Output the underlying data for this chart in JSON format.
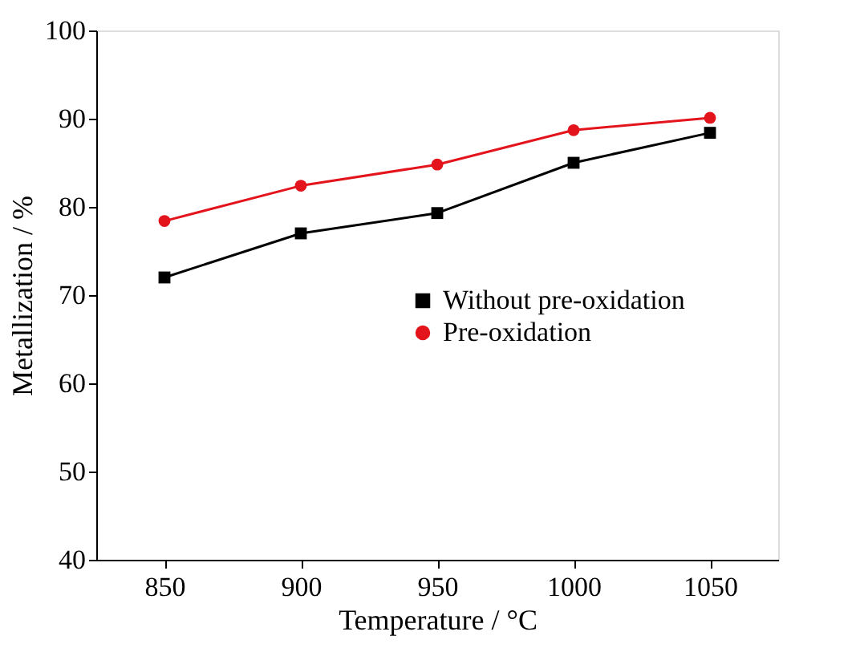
{
  "chart_data": {
    "type": "line",
    "xlabel": "Temperature / °C",
    "ylabel": "Metallization / %",
    "x": [
      850,
      900,
      950,
      1000,
      1050
    ],
    "series": [
      {
        "name": "Without pre-oxidation",
        "color": "#000000",
        "marker": "square",
        "values": [
          72.0,
          77.0,
          79.3,
          85.0,
          88.4
        ]
      },
      {
        "name": "Pre-oxidation",
        "color": "#e3141b",
        "marker": "circle",
        "values": [
          78.4,
          82.4,
          84.8,
          88.7,
          90.1
        ]
      }
    ],
    "xlim": [
      825,
      1075
    ],
    "xticks": [
      850,
      900,
      950,
      1000,
      1050
    ],
    "ylim": [
      40,
      100
    ],
    "yticks": [
      40,
      50,
      60,
      70,
      80,
      90,
      100
    ],
    "grid": false,
    "legend": "right",
    "line_style": "solid"
  }
}
